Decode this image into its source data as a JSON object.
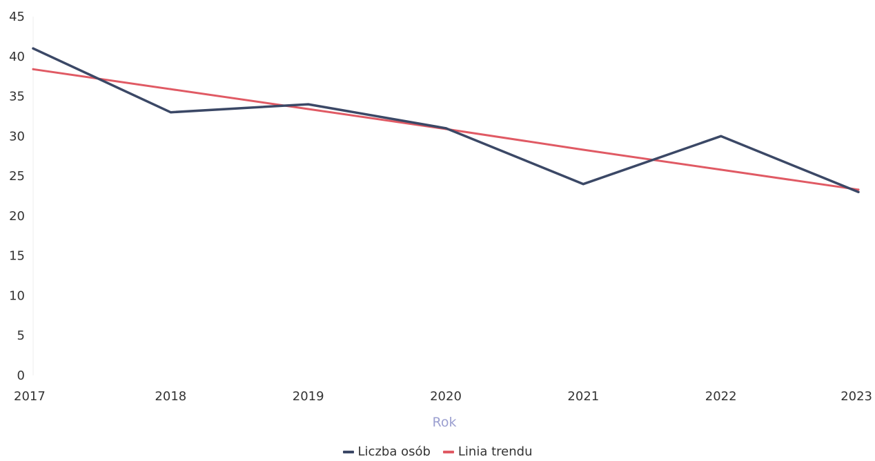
{
  "chart_data": {
    "type": "line",
    "x": [
      "2017",
      "2018",
      "2019",
      "2020",
      "2021",
      "2022",
      "2023"
    ],
    "series": [
      {
        "name": "Liczba osób",
        "values": [
          41,
          33,
          34,
          31,
          24,
          30,
          23
        ],
        "color": "#3b4866"
      },
      {
        "name": "Linia trendu",
        "values": [
          38.4,
          35.9,
          33.4,
          30.9,
          28.3,
          25.8,
          23.3
        ],
        "color": "#e05a64"
      }
    ],
    "xlabel": "Rok",
    "ylabel": "",
    "ylim": [
      0,
      45
    ],
    "yticks": [
      "0",
      "5",
      "10",
      "15",
      "20",
      "25",
      "30",
      "35",
      "40",
      "45"
    ],
    "grid": false,
    "legend_position": "bottom-center"
  }
}
